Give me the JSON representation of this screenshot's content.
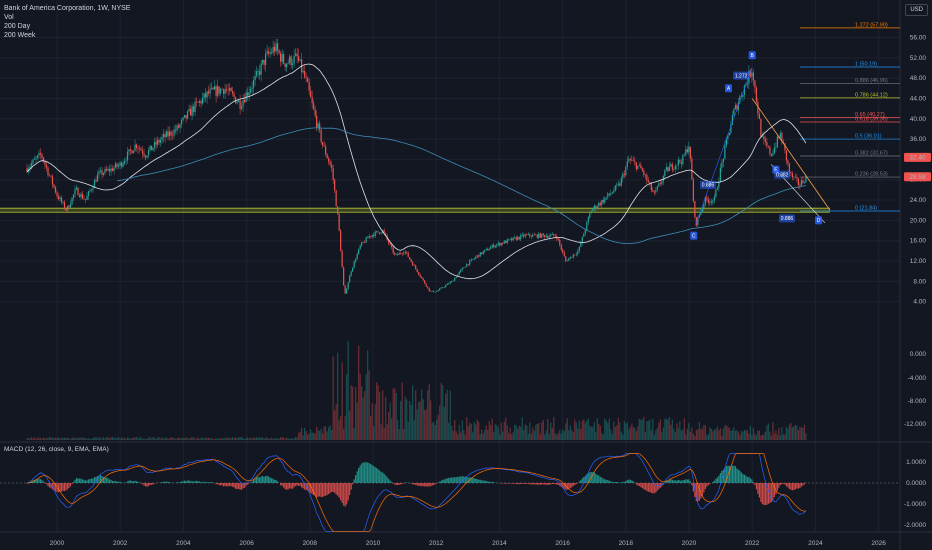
{
  "legend": {
    "title": "Bank of America Corporation, 1W, NYSE",
    "lines": [
      "Vol",
      "200 Day",
      "200 Week"
    ]
  },
  "macd_label": "MACD (12, 26, close, 9, EMA, EMA)",
  "currency": "USD",
  "colors": {
    "background": "#131722",
    "up": "#26a69a",
    "down": "#ef5350",
    "ma200d": "#e0e3eb",
    "ma200w": "#3a8fb7",
    "macd": "#2962ff",
    "signal": "#ff6d00",
    "support_band": "#b5c22e",
    "trendline": "#f5a04a"
  },
  "chart_data": [
    {
      "type": "candlestick",
      "title": "Bank of America Corporation, 1W, NYSE",
      "x_ticks": [
        "2000",
        "2002",
        "2004",
        "2006",
        "2008",
        "2010",
        "2012",
        "2014",
        "2016",
        "2018",
        "2020",
        "2022",
        "2024",
        "2026"
      ],
      "y_ticks": [
        "56.00",
        "52.00",
        "48.00",
        "44.00",
        "40.00",
        "36.00",
        "32.00",
        "28.00",
        "24.00",
        "20.00",
        "16.00",
        "12.00",
        "8.00",
        "4.00"
      ],
      "ylim": [
        2,
        59
      ],
      "price_path": [
        [
          1999.0,
          30
        ],
        [
          1999.5,
          33
        ],
        [
          2000.0,
          25
        ],
        [
          2000.3,
          22
        ],
        [
          2000.6,
          26
        ],
        [
          2000.9,
          24
        ],
        [
          2001.3,
          29
        ],
        [
          2001.7,
          30
        ],
        [
          2002.0,
          31
        ],
        [
          2002.5,
          35
        ],
        [
          2002.8,
          33
        ],
        [
          2003.3,
          36
        ],
        [
          2003.8,
          38
        ],
        [
          2004.3,
          42
        ],
        [
          2004.8,
          45
        ],
        [
          2005.3,
          46
        ],
        [
          2005.8,
          43
        ],
        [
          2006.3,
          48
        ],
        [
          2006.6,
          52
        ],
        [
          2006.9,
          54
        ],
        [
          2007.2,
          51
        ],
        [
          2007.6,
          52
        ],
        [
          2007.9,
          47
        ],
        [
          2008.1,
          42
        ],
        [
          2008.4,
          35
        ],
        [
          2008.7,
          30
        ],
        [
          2008.9,
          20
        ],
        [
          2009.1,
          5
        ],
        [
          2009.3,
          10
        ],
        [
          2009.6,
          15
        ],
        [
          2009.9,
          17
        ],
        [
          2010.3,
          18
        ],
        [
          2010.7,
          13
        ],
        [
          2011.0,
          14
        ],
        [
          2011.4,
          10
        ],
        [
          2011.8,
          6
        ],
        [
          2012.0,
          6
        ],
        [
          2012.5,
          8
        ],
        [
          2012.9,
          11
        ],
        [
          2013.3,
          13
        ],
        [
          2013.8,
          15
        ],
        [
          2014.3,
          16
        ],
        [
          2014.8,
          17
        ],
        [
          2015.3,
          17
        ],
        [
          2015.8,
          17
        ],
        [
          2016.1,
          12
        ],
        [
          2016.5,
          14
        ],
        [
          2016.9,
          22
        ],
        [
          2017.3,
          24
        ],
        [
          2017.8,
          27
        ],
        [
          2018.1,
          32
        ],
        [
          2018.5,
          30
        ],
        [
          2018.9,
          25
        ],
        [
          2019.3,
          30
        ],
        [
          2019.8,
          32
        ],
        [
          2020.0,
          35
        ],
        [
          2020.2,
          19
        ],
        [
          2020.5,
          24
        ],
        [
          2020.8,
          24
        ],
        [
          2021.1,
          33
        ],
        [
          2021.4,
          41
        ],
        [
          2021.8,
          47
        ],
        [
          2022.0,
          50
        ],
        [
          2022.3,
          36
        ],
        [
          2022.6,
          33
        ],
        [
          2022.9,
          37
        ],
        [
          2023.2,
          29
        ],
        [
          2023.5,
          27
        ],
        [
          2023.7,
          28.5
        ]
      ],
      "current_price": "28.58",
      "price_tag_red": "32.40",
      "annotations": {
        "waves": [
          "A",
          "B",
          "C",
          "D",
          "E"
        ],
        "wave_ratios": [
          "1.272",
          "0.886",
          "0.382",
          "0.886"
        ],
        "fibonacci": [
          {
            "ratio": "1.272",
            "label": "1.272 (57.90)",
            "value": 57.9,
            "color": "#f57c00"
          },
          {
            "ratio": "1",
            "label": "1 (50.19)",
            "value": 50.19,
            "color": "#2196f3"
          },
          {
            "ratio": "0.886",
            "label": "0.886 (46.96)",
            "value": 46.96,
            "color": "#787b86"
          },
          {
            "ratio": "0.786",
            "label": "0.786 (44.12)",
            "value": 44.12,
            "color": "#b5c22e"
          },
          {
            "ratio": "0.65",
            "label": "0.65 (40.27)",
            "value": 40.27,
            "color": "#ef5350"
          },
          {
            "ratio": "0.618",
            "label": "0.618 (39.36)",
            "value": 39.36,
            "color": "#ef5350"
          },
          {
            "ratio": "0.5",
            "label": "0.5 (36.01)",
            "value": 36.01,
            "color": "#2196f3"
          },
          {
            "ratio": "0.382",
            "label": "0.382 (32.67)",
            "value": 32.67,
            "color": "#787b86"
          },
          {
            "ratio": "0.236",
            "label": "0.236 (28.53)",
            "value": 28.53,
            "color": "#787b86"
          },
          {
            "ratio": "0",
            "label": "0 (21.84)",
            "value": 21.84,
            "color": "#2196f3"
          }
        ]
      }
    },
    {
      "type": "bar",
      "title": "MACD (12, 26, close, 9, EMA, EMA)",
      "y_ticks": [
        "1.0000",
        "0.0000",
        "-1.0000",
        "-2.0000"
      ],
      "ylim": [
        -2.4,
        1.5
      ]
    },
    {
      "type": "bar",
      "title": "Vol",
      "y_ticks": [
        "0.000",
        "-4.000",
        "-8.000",
        "-12.000"
      ]
    }
  ]
}
